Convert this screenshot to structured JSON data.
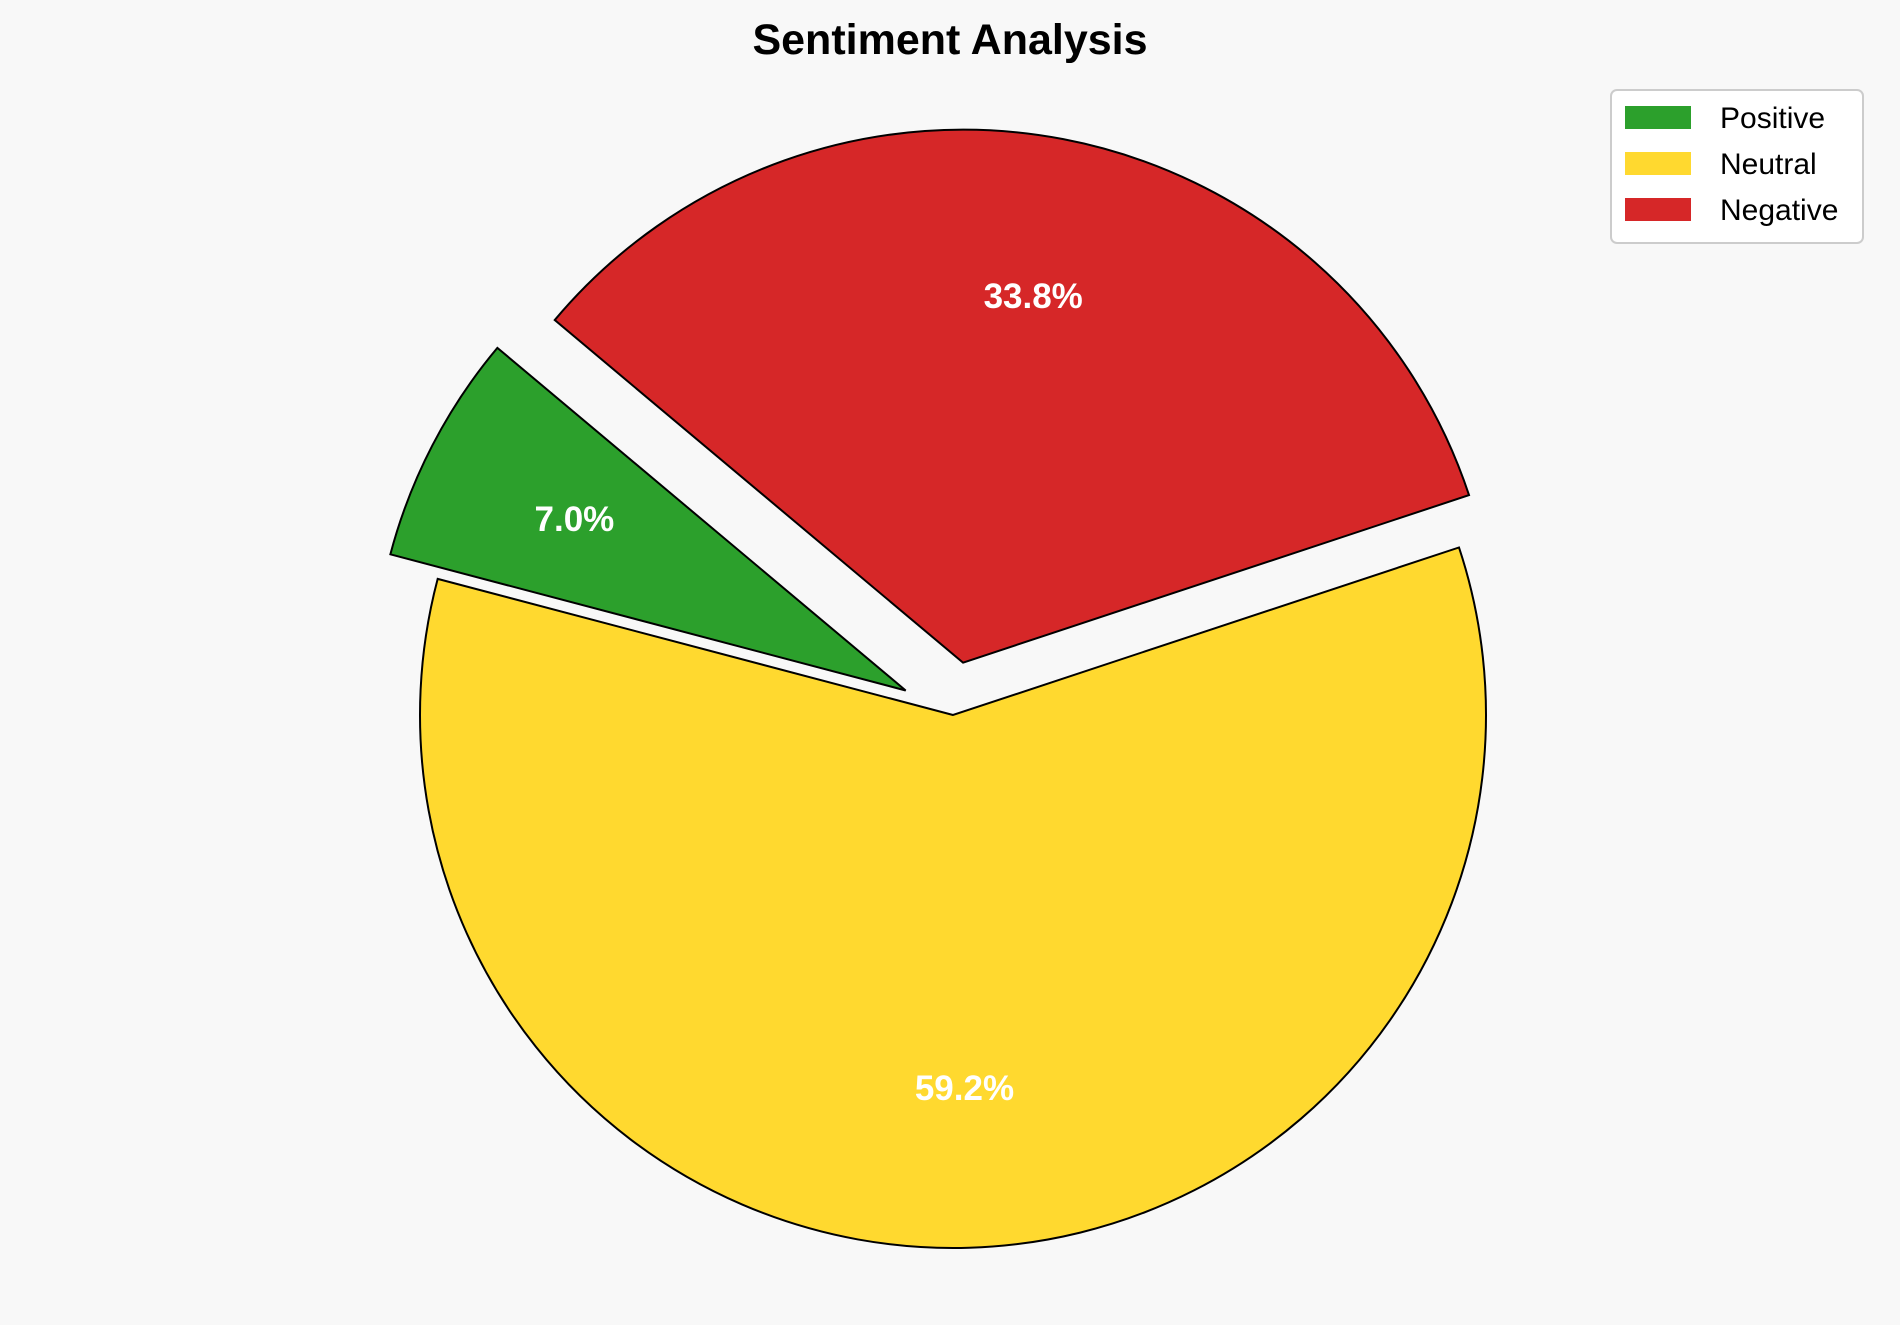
{
  "chart_data": {
    "type": "pie",
    "title": "Sentiment Analysis",
    "categories": [
      "Positive",
      "Neutral",
      "Negative"
    ],
    "values": [
      7.0,
      59.2,
      33.8
    ],
    "labels": [
      "7.0%",
      "59.2%",
      "33.8%"
    ],
    "colors": [
      "#2ca02c",
      "#ffd92f",
      "#d62728"
    ],
    "explode": [
      0.1,
      0,
      0.1
    ],
    "start_angle": 140,
    "edge_color": "#000000",
    "legend_placement": "top-right"
  }
}
